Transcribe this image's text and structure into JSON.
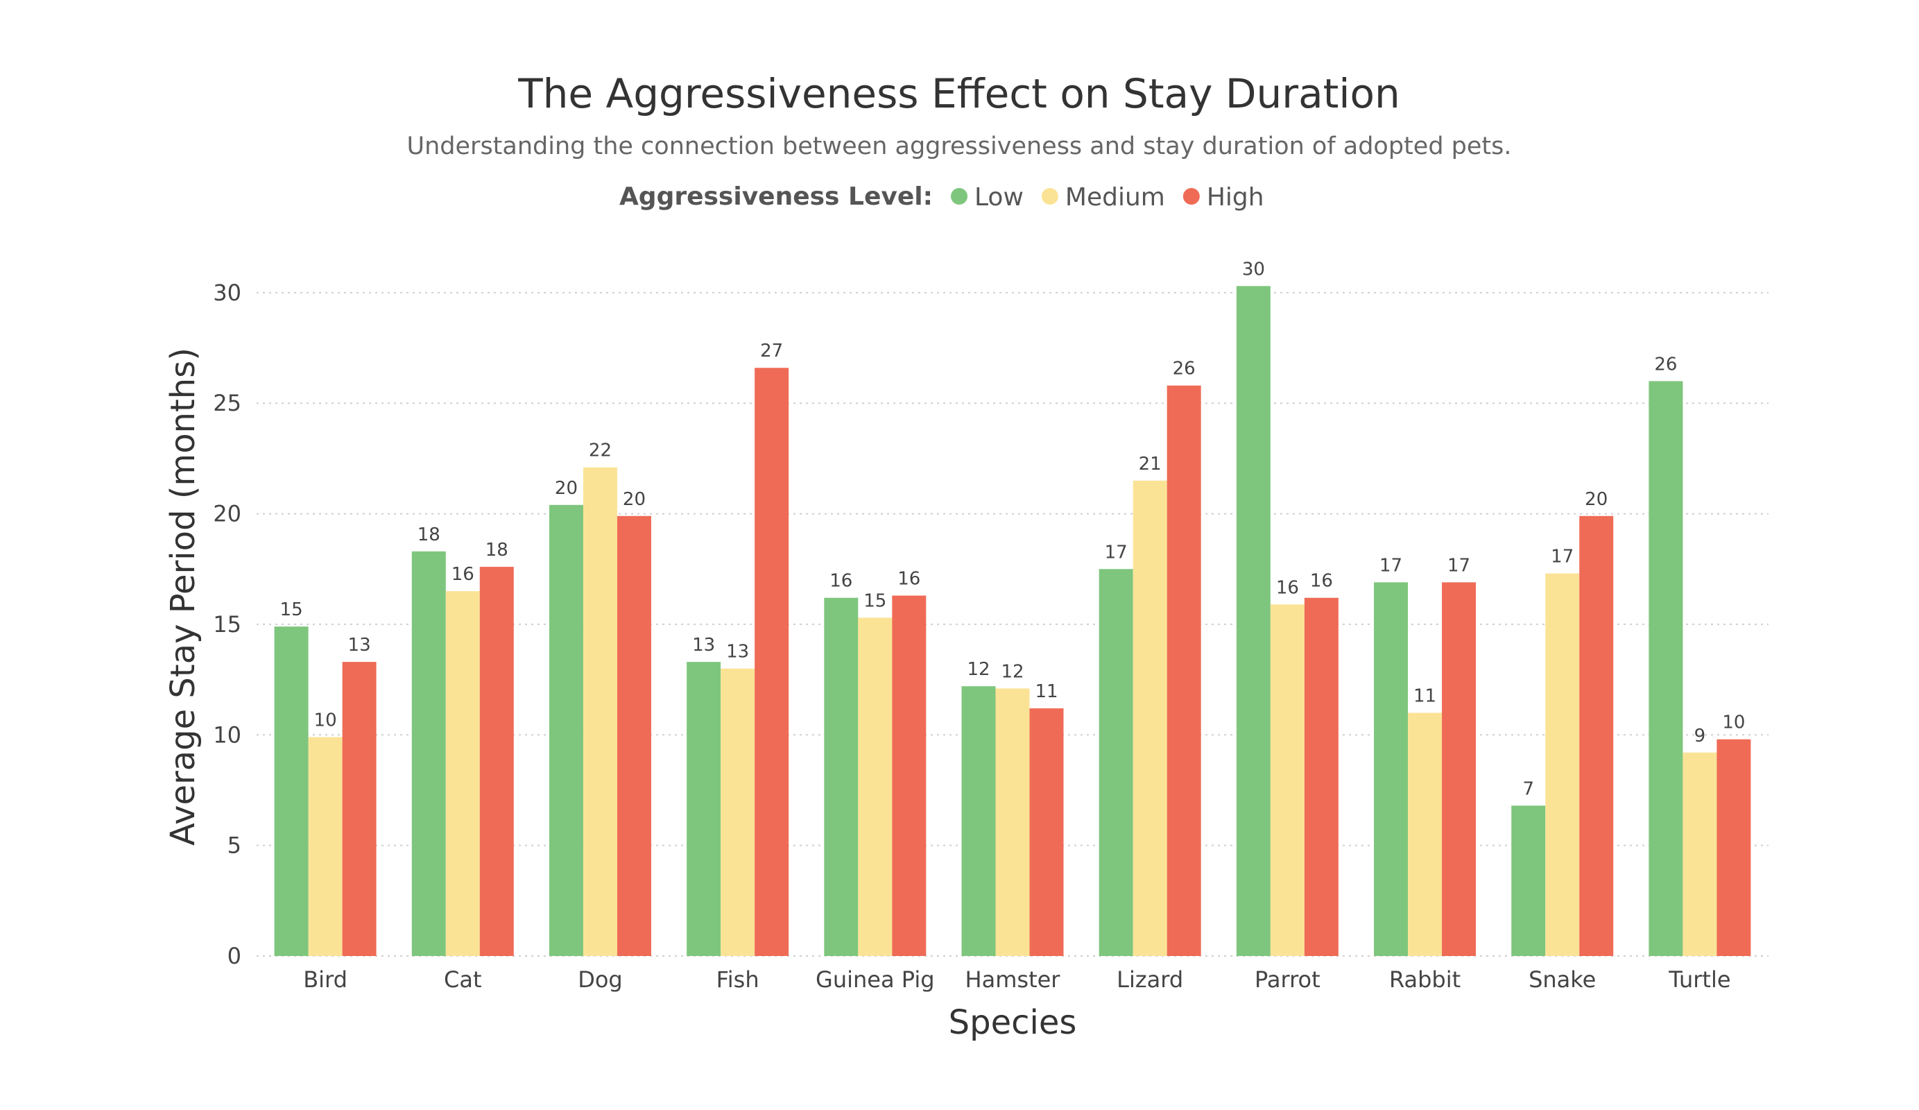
{
  "chart_data": {
    "type": "bar",
    "title": "The Aggressiveness Effect on Stay Duration",
    "subtitle": "Understanding the connection between aggressiveness and stay duration of adopted pets.",
    "legend_title": "Aggressiveness Level:",
    "legend_position": "top-center",
    "xlabel": "Species",
    "ylabel": "Average Stay Period (months)",
    "ylim": [
      0,
      31
    ],
    "yticks": [
      0,
      5,
      10,
      15,
      20,
      25,
      30
    ],
    "grid": true,
    "categories": [
      "Bird",
      "Cat",
      "Dog",
      "Fish",
      "Guinea Pig",
      "Hamster",
      "Lizard",
      "Parrot",
      "Rabbit",
      "Snake",
      "Turtle"
    ],
    "series": [
      {
        "name": "Low",
        "color": "#7ec67d",
        "values": [
          14.9,
          18.3,
          20.4,
          13.3,
          16.2,
          12.2,
          17.5,
          30.3,
          16.9,
          6.8,
          26.0
        ],
        "labels": [
          "15",
          "18",
          "20",
          "13",
          "16",
          "12",
          "17",
          "30",
          "17",
          "7",
          "26"
        ]
      },
      {
        "name": "Medium",
        "color": "#fbe396",
        "values": [
          9.9,
          16.5,
          22.1,
          13.0,
          15.3,
          12.1,
          21.5,
          15.9,
          11.0,
          17.3,
          9.2
        ],
        "labels": [
          "10",
          "16",
          "22",
          "13",
          "15",
          "12",
          "21",
          "16",
          "11",
          "17",
          "9"
        ]
      },
      {
        "name": "High",
        "color": "#ef6b56",
        "values": [
          13.3,
          17.6,
          19.9,
          26.6,
          16.3,
          11.2,
          25.8,
          16.2,
          16.9,
          19.9,
          9.8
        ],
        "labels": [
          "13",
          "18",
          "20",
          "27",
          "16",
          "11",
          "26",
          "16",
          "17",
          "20",
          "10"
        ]
      }
    ]
  }
}
